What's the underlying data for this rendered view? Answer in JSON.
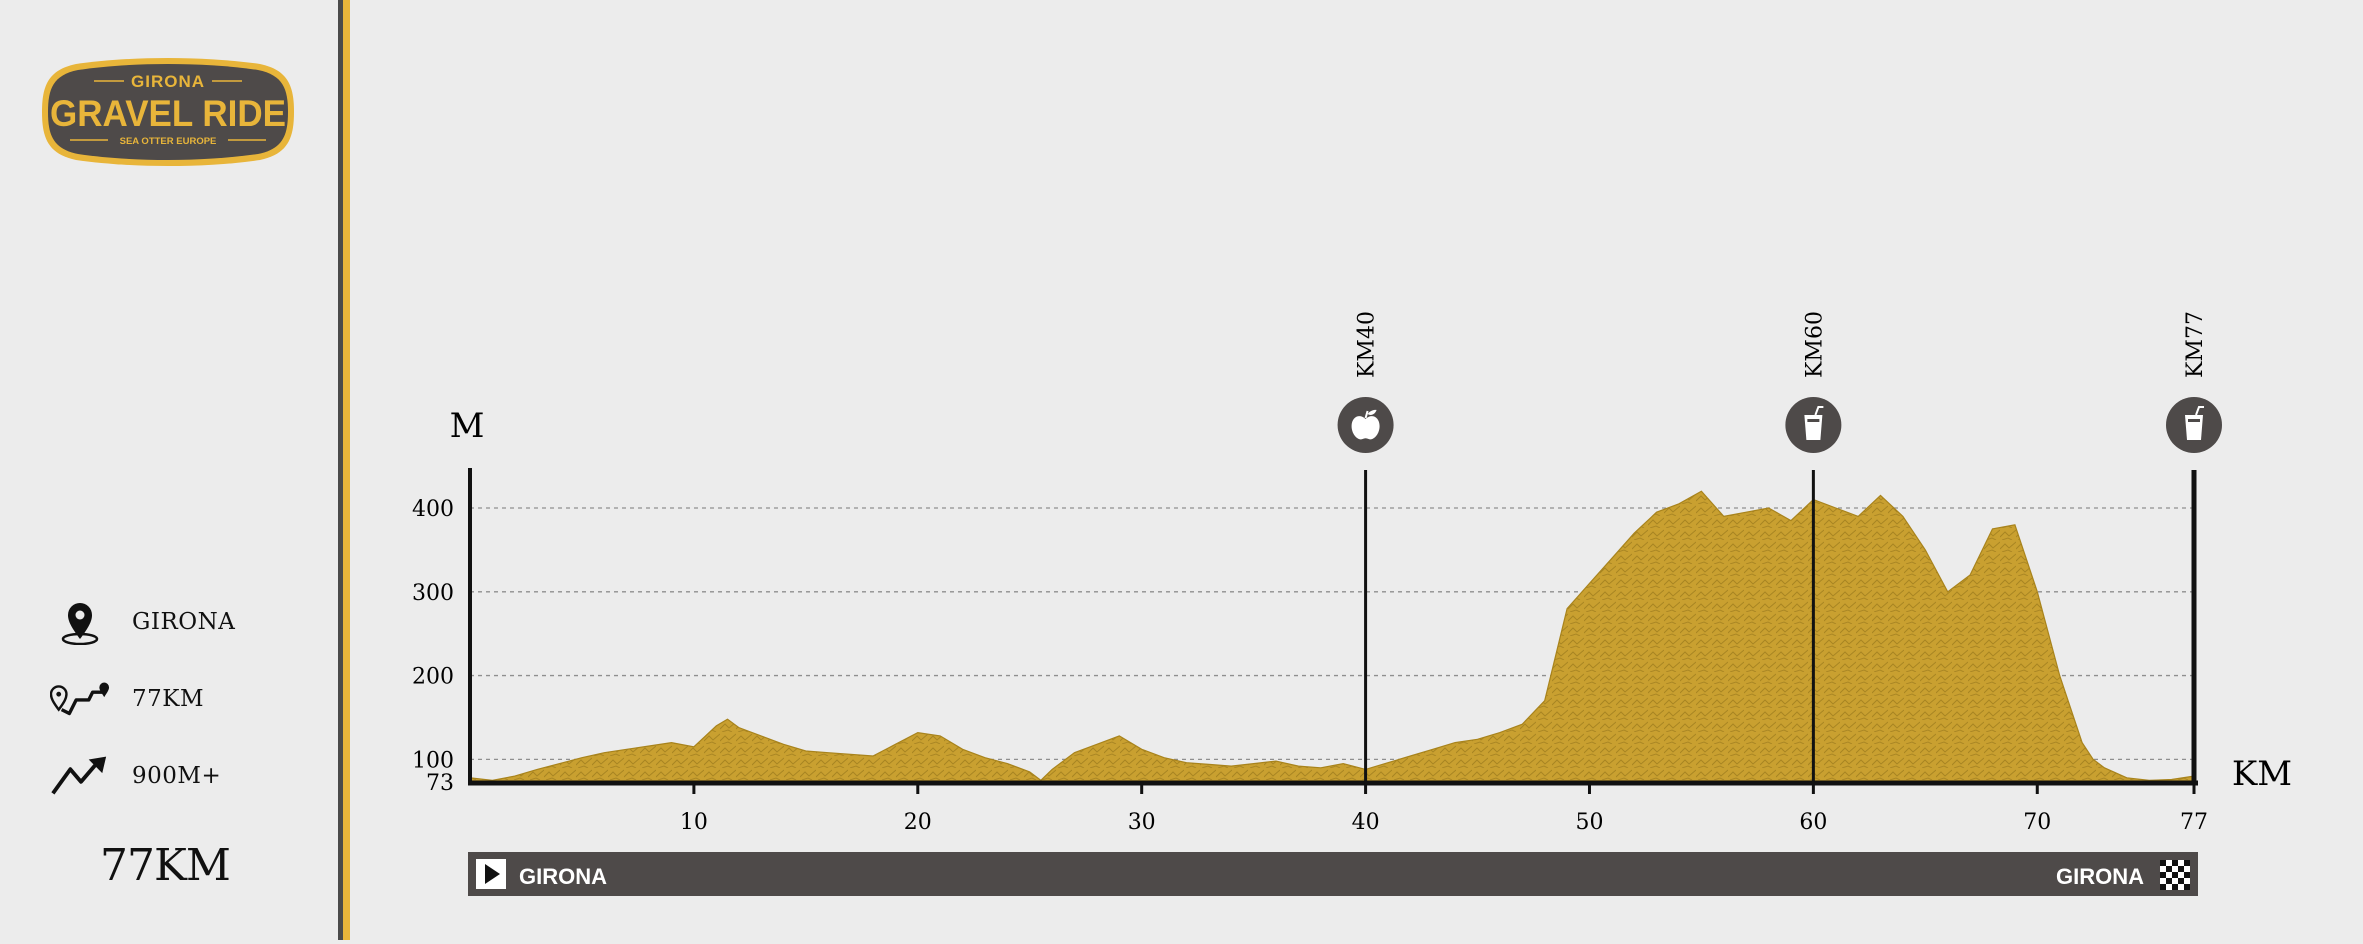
{
  "brand": {
    "top": "GIRONA",
    "main": "GRAVEL RIDE",
    "sub": "SEA OTTER EUROPE",
    "colors": {
      "plate": "#4e4a49",
      "gold": "#e8b53a"
    }
  },
  "info": [
    {
      "icon": "location-pin-icon",
      "text": "GIRONA"
    },
    {
      "icon": "route-icon",
      "text": "77KM"
    },
    {
      "icon": "elevation-gain-icon",
      "text": "900M+"
    }
  ],
  "total_distance": "77KM",
  "chart_data": {
    "type": "area",
    "ylabel": "M",
    "xlabel": "KM",
    "ylim": [
      73,
      440
    ],
    "xlim": [
      0,
      77
    ],
    "yticks": [
      73,
      100,
      200,
      300,
      400
    ],
    "xticks": [
      10,
      20,
      30,
      40,
      50,
      60,
      70,
      77
    ],
    "grid": true,
    "fill_color": "#c9a030",
    "series": [
      {
        "x": [
          0,
          1,
          2,
          3,
          4,
          5,
          6,
          7,
          8,
          9,
          10,
          11,
          11.5,
          12,
          13,
          14,
          15,
          16,
          17,
          18,
          19,
          20,
          21,
          22,
          23,
          24,
          25,
          25.5,
          26,
          27,
          28,
          29,
          30,
          31,
          32,
          33,
          34,
          35,
          36,
          37,
          38,
          39,
          40,
          41,
          42,
          43,
          44,
          45,
          46,
          47,
          48,
          49,
          50,
          51,
          52,
          53,
          54,
          55,
          56,
          57,
          58,
          59,
          60,
          61,
          62,
          63,
          64,
          65,
          66,
          67,
          68,
          69,
          70,
          71,
          72,
          72.5,
          73,
          74,
          75,
          76,
          77
        ],
        "y": [
          78,
          75,
          80,
          88,
          95,
          102,
          108,
          112,
          116,
          120,
          115,
          140,
          148,
          138,
          128,
          118,
          110,
          108,
          106,
          104,
          118,
          132,
          128,
          112,
          102,
          95,
          85,
          75,
          88,
          108,
          118,
          128,
          112,
          102,
          96,
          94,
          92,
          95,
          98,
          92,
          90,
          95,
          88,
          96,
          104,
          112,
          120,
          124,
          132,
          142,
          170,
          280,
          310,
          340,
          370,
          395,
          405,
          420,
          390,
          395,
          400,
          385,
          410,
          400,
          390,
          415,
          390,
          350,
          300,
          320,
          375,
          380,
          300,
          200,
          120,
          100,
          90,
          78,
          75,
          76,
          80
        ]
      }
    ],
    "markers": [
      {
        "km": 40,
        "label": "KM40",
        "icon": "apple-icon"
      },
      {
        "km": 60,
        "label": "KM60",
        "icon": "drink-icon"
      },
      {
        "km": 77,
        "label": "KM77",
        "icon": "drink-icon"
      }
    ],
    "route": {
      "start": "GIRONA",
      "finish": "GIRONA"
    }
  }
}
